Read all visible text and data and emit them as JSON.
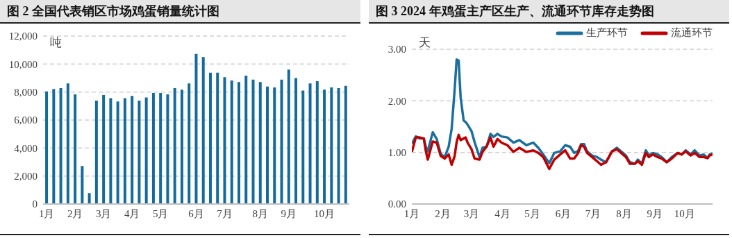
{
  "chart_data": [
    {
      "type": "bar",
      "title": "图 2 全国代表销区市场鸡蛋销量统计图",
      "ylabel": "吨",
      "categories": [
        "1月",
        null,
        null,
        null,
        "2月",
        null,
        null,
        null,
        "3月",
        null,
        null,
        null,
        "4月",
        null,
        null,
        null,
        "5月",
        null,
        null,
        null,
        null,
        "6月",
        null,
        null,
        null,
        "7月",
        null,
        null,
        null,
        null,
        "8月",
        null,
        null,
        null,
        "9月",
        null,
        null,
        null,
        null,
        "10月",
        null,
        null,
        null
      ],
      "values": [
        8050,
        8220,
        8280,
        8610,
        7830,
        2720,
        780,
        7390,
        7780,
        7560,
        7330,
        7560,
        7720,
        7390,
        7610,
        7940,
        7940,
        7830,
        8280,
        8170,
        8610,
        10720,
        10500,
        9390,
        9390,
        9060,
        8830,
        8720,
        9170,
        8890,
        8720,
        8390,
        8330,
        8890,
        9610,
        9000,
        8110,
        8610,
        8780,
        8170,
        8330,
        8280,
        8440
      ],
      "color": "#136b9c",
      "ylim": [
        0,
        12000
      ],
      "yticks": [
        {
          "value": 0,
          "label": "0"
        },
        {
          "value": 2000,
          "label": "2,000"
        },
        {
          "value": 4000,
          "label": "4,000"
        },
        {
          "value": 6000,
          "label": "6,000"
        },
        {
          "value": 8000,
          "label": "8,000"
        },
        {
          "value": 10000,
          "label": "10,000"
        },
        {
          "value": 12000,
          "label": "12,000"
        }
      ],
      "grid": "y",
      "legend": false
    },
    {
      "type": "line",
      "title": "图 3 2024 年鸡蛋主产区生产、流通环节库存走势图",
      "ylabel": "天",
      "x": [
        "2024-01-01",
        "2024-01-05",
        "2024-01-09",
        "2024-01-13",
        "2024-01-15",
        "2024-01-17",
        "2024-01-22",
        "2024-01-26",
        "2024-01-30",
        "2024-02-03",
        "2024-02-07",
        "2024-02-10",
        "2024-02-13",
        "2024-02-15",
        "2024-02-17",
        "2024-02-19",
        "2024-02-22",
        "2024-02-24",
        "2024-02-26",
        "2024-03-01",
        "2024-03-04",
        "2024-03-09",
        "2024-03-12",
        "2024-03-16",
        "2024-03-20",
        "2024-03-23",
        "2024-03-27",
        "2024-03-31",
        "2024-04-06",
        "2024-04-12",
        "2024-04-18",
        "2024-04-25",
        "2024-05-02",
        "2024-05-07",
        "2024-05-12",
        "2024-05-18",
        "2024-05-23",
        "2024-05-29",
        "2024-06-03",
        "2024-06-08",
        "2024-06-12",
        "2024-06-16",
        "2024-06-19",
        "2024-06-22",
        "2024-06-25",
        "2024-06-30",
        "2024-07-05",
        "2024-07-09",
        "2024-07-14",
        "2024-07-20",
        "2024-07-25",
        "2024-08-03",
        "2024-08-07",
        "2024-08-12",
        "2024-08-15",
        "2024-08-19",
        "2024-08-23",
        "2024-08-26",
        "2024-08-30",
        "2024-09-04",
        "2024-09-08",
        "2024-09-13",
        "2024-09-18",
        "2024-09-24",
        "2024-09-28",
        "2024-10-02",
        "2024-10-07",
        "2024-10-11",
        "2024-10-16",
        "2024-10-20",
        "2024-10-24",
        "2024-10-26",
        "2024-10-29"
      ],
      "series": [
        {
          "name": "生产环节",
          "color": "#1a6f9e",
          "values": [
            1.17,
            1.31,
            1.27,
            1.27,
            1.11,
            1.02,
            1.39,
            1.26,
            0.97,
            0.91,
            1.11,
            1.46,
            2.22,
            2.8,
            2.78,
            2.07,
            1.62,
            1.59,
            1.54,
            1.41,
            1.2,
            0.91,
            1.09,
            1.11,
            1.36,
            1.3,
            1.36,
            1.31,
            1.29,
            1.19,
            1.24,
            1.14,
            1.19,
            1.09,
            0.96,
            0.79,
            0.99,
            1.02,
            1.14,
            1.11,
            0.99,
            1.03,
            1.16,
            1.16,
            1.02,
            0.94,
            0.91,
            0.86,
            0.81,
            1.02,
            1.09,
            0.94,
            0.81,
            0.78,
            0.86,
            0.78,
            1.04,
            0.94,
            0.99,
            0.96,
            0.91,
            0.81,
            0.91,
            0.99,
            0.96,
            1.04,
            0.96,
            1.04,
            0.94,
            0.96,
            0.89,
            0.96,
            0.98
          ]
        },
        {
          "name": "流通环节",
          "color": "#c00000",
          "values": [
            1.01,
            1.29,
            1.29,
            1.27,
            1.03,
            0.86,
            1.21,
            1.19,
            0.93,
            0.88,
            0.96,
            0.76,
            0.93,
            1.2,
            1.34,
            1.24,
            1.27,
            1.29,
            1.19,
            1.06,
            0.88,
            0.86,
            1.01,
            1.11,
            1.29,
            1.11,
            1.26,
            1.19,
            1.14,
            1.01,
            1.09,
            1.01,
            1.04,
            0.99,
            0.91,
            0.68,
            0.86,
            0.96,
            1.04,
            0.88,
            0.88,
            0.99,
            1.14,
            1.11,
            0.99,
            0.91,
            0.83,
            0.76,
            0.81,
            1.02,
            1.06,
            0.91,
            0.78,
            0.78,
            0.83,
            0.76,
            0.99,
            0.91,
            0.96,
            0.91,
            0.88,
            0.81,
            0.88,
            0.99,
            0.96,
            1.02,
            0.94,
            0.99,
            0.91,
            0.91,
            0.89,
            0.94,
            0.96
          ]
        }
      ],
      "xlim": [
        "2024-01-01",
        "2024-10-29"
      ],
      "xticks": [
        {
          "value": "2024-01-01",
          "label": "1月"
        },
        {
          "value": "2024-02-01",
          "label": "2月"
        },
        {
          "value": "2024-03-01",
          "label": "3月"
        },
        {
          "value": "2024-04-01",
          "label": "4月"
        },
        {
          "value": "2024-05-01",
          "label": "5月"
        },
        {
          "value": "2024-06-01",
          "label": "6月"
        },
        {
          "value": "2024-07-01",
          "label": "7月"
        },
        {
          "value": "2024-08-01",
          "label": "8月"
        },
        {
          "value": "2024-09-01",
          "label": "9月"
        },
        {
          "value": "2024-10-01",
          "label": "10月"
        }
      ],
      "ylim": [
        0,
        3
      ],
      "yticks": [
        {
          "value": 0,
          "label": "0.00"
        },
        {
          "value": 1,
          "label": "1.00"
        },
        {
          "value": 2,
          "label": "2.00"
        },
        {
          "value": 3,
          "label": "3.00"
        }
      ],
      "grid": "y",
      "legend": "top right",
      "line_style": "solid",
      "marker": "none"
    }
  ]
}
